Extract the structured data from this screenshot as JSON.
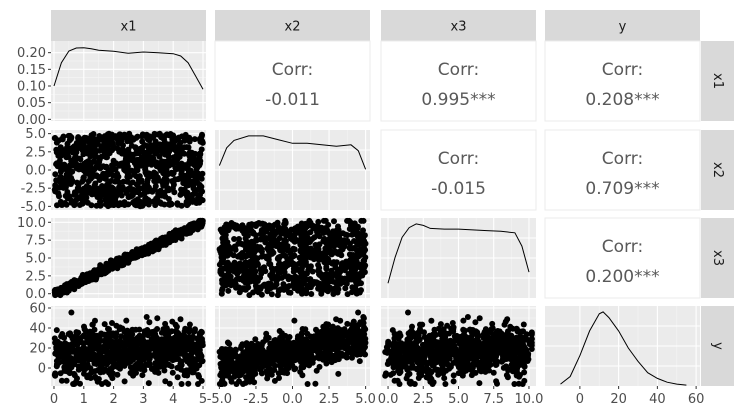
{
  "chart_data": {
    "type": "scatter_matrix",
    "variables": [
      "x1",
      "x2",
      "x3",
      "y"
    ],
    "axes": {
      "x1": {
        "range": [
          -0.1,
          5.1
        ],
        "ticks": [
          0,
          1,
          2,
          3,
          4,
          5
        ],
        "tick_labels": [
          "0",
          "1",
          "2",
          "3",
          "4",
          "5"
        ]
      },
      "x2": {
        "range": [
          -5.3,
          5.3
        ],
        "ticks": [
          -5,
          -2.5,
          0,
          2.5,
          5
        ],
        "tick_labels": [
          "-5.0",
          "-2.5",
          "0.0",
          "2.5",
          "5.0"
        ]
      },
      "x3": {
        "range": [
          -0.5,
          10.5
        ],
        "ticks": [
          0,
          2.5,
          5,
          7.5,
          10
        ],
        "tick_labels": [
          "0.0",
          "2.5",
          "5.0",
          "7.5",
          "10.0"
        ]
      },
      "y": {
        "range": [
          -18,
          62
        ],
        "ticks": [
          0,
          20,
          40,
          60
        ],
        "tick_labels": [
          "0",
          "20",
          "40",
          "60"
        ]
      }
    },
    "row_axes": {
      "x1": {
        "range": [
          -0.005,
          0.235
        ],
        "ticks": [
          0,
          0.05,
          0.1,
          0.15,
          0.2
        ],
        "tick_labels": [
          "0.00",
          "0.05",
          "0.10",
          "0.15",
          "0.20"
        ]
      },
      "x2": {
        "range": [
          -5.5,
          5.5
        ],
        "ticks": [
          -5,
          -2.5,
          0,
          2.5,
          5
        ],
        "tick_labels": [
          "-5.0",
          "-2.5",
          "0.0",
          "2.5",
          "5.0"
        ]
      },
      "x3": {
        "range": [
          -0.6,
          10.6
        ],
        "ticks": [
          0,
          2.5,
          5,
          7.5,
          10
        ],
        "tick_labels": [
          "0.0",
          "2.5",
          "5.0",
          "7.5",
          "10.0"
        ]
      },
      "y": {
        "range": [
          -18,
          62
        ],
        "ticks": [
          0,
          20,
          40,
          60
        ],
        "tick_labels": [
          "0",
          "20",
          "40",
          "60"
        ]
      }
    },
    "correlations": [
      {
        "row": "x1",
        "col": "x2",
        "label": "Corr:",
        "value": "-0.011"
      },
      {
        "row": "x1",
        "col": "x3",
        "label": "Corr:",
        "value": "0.995***"
      },
      {
        "row": "x1",
        "col": "y",
        "label": "Corr:",
        "value": "0.208***"
      },
      {
        "row": "x2",
        "col": "x3",
        "label": "Corr:",
        "value": "-0.015"
      },
      {
        "row": "x2",
        "col": "y",
        "label": "Corr:",
        "value": "0.709***"
      },
      {
        "row": "x3",
        "col": "y",
        "label": "Corr:",
        "value": "0.200***"
      }
    ],
    "densities": {
      "x1": {
        "x": [
          0,
          0.25,
          0.5,
          0.75,
          1,
          1.25,
          1.5,
          2,
          2.5,
          3,
          3.5,
          4,
          4.25,
          4.5,
          4.75,
          5
        ],
        "y": [
          0.1,
          0.17,
          0.205,
          0.214,
          0.215,
          0.212,
          0.207,
          0.204,
          0.198,
          0.202,
          0.2,
          0.197,
          0.19,
          0.17,
          0.13,
          0.09
        ]
      },
      "x2": {
        "x": [
          -5,
          -4.5,
          -4,
          -3,
          -2,
          -1,
          0,
          1,
          2,
          3,
          4,
          4.5,
          5
        ],
        "y": [
          0.06,
          0.084,
          0.094,
          0.1,
          0.1,
          0.095,
          0.09,
          0.09,
          0.088,
          0.086,
          0.088,
          0.08,
          0.055
        ]
      },
      "x3": {
        "x": [
          0,
          0.5,
          1,
          1.5,
          2,
          2.5,
          3,
          4,
          5,
          6,
          7,
          8,
          9,
          9.5,
          10
        ],
        "y": [
          0.02,
          0.055,
          0.082,
          0.095,
          0.1,
          0.098,
          0.094,
          0.093,
          0.093,
          0.092,
          0.091,
          0.09,
          0.088,
          0.07,
          0.035
        ]
      },
      "y": {
        "x": [
          -10,
          -5,
          0,
          5,
          10,
          12,
          15,
          20,
          25,
          30,
          35,
          40,
          45,
          50,
          55
        ],
        "y": [
          0.001,
          0.005,
          0.016,
          0.029,
          0.038,
          0.039,
          0.036,
          0.029,
          0.02,
          0.013,
          0.007,
          0.004,
          0.002,
          0.001,
          0.0005
        ]
      }
    },
    "grid": true,
    "legend": "none"
  },
  "panel_style": {
    "panel_bg": "#ebebeb",
    "strip_bg": "#d9d9d9",
    "grid_major": "#ffffff",
    "grid_minor": "#f5f5f5",
    "point_color": "#000000",
    "corr_text": "#595959"
  }
}
